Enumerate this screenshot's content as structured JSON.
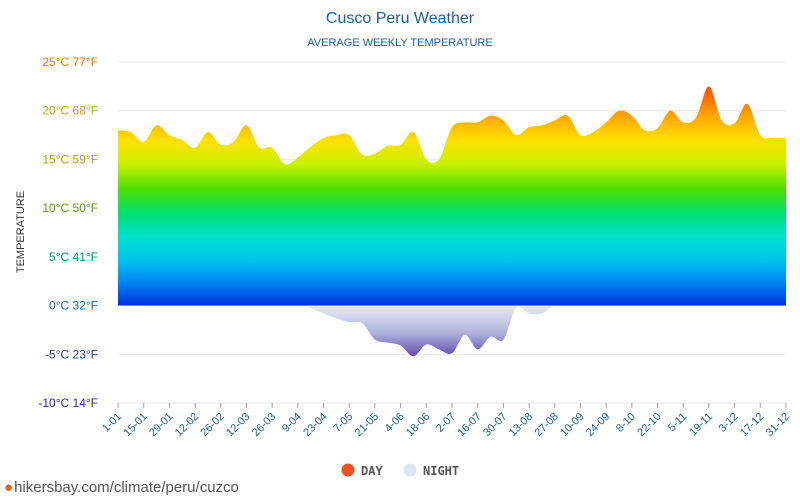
{
  "chart_data": {
    "type": "area",
    "title": "Cusco Peru Weather",
    "subtitle": "AVERAGE WEEKLY TEMPERATURE",
    "ylabel": "TEMPERATURE",
    "ylim": [
      -10,
      25
    ],
    "yticks": [
      {
        "value": 25,
        "label": "25°C 77°F",
        "color": "#e07b00"
      },
      {
        "value": 20,
        "label": "20°C 68°F",
        "color": "#d4a500"
      },
      {
        "value": 15,
        "label": "15°C 59°F",
        "color": "#a8a800"
      },
      {
        "value": 10,
        "label": "10°C 50°F",
        "color": "#5aa000"
      },
      {
        "value": 5,
        "label": "5°C 41°F",
        "color": "#008e8e"
      },
      {
        "value": 0,
        "label": "0°C 32°F",
        "color": "#1565c0"
      },
      {
        "value": -5,
        "label": "-5°C 23°F",
        "color": "#1a3fa8"
      },
      {
        "value": -10,
        "label": "-10°C 14°F",
        "color": "#2a1fc0"
      }
    ],
    "xticks": [
      "1-01",
      "15-01",
      "29-01",
      "12-02",
      "26-02",
      "12-03",
      "26-03",
      "9-04",
      "23-04",
      "7-05",
      "21-05",
      "4-06",
      "18-06",
      "2-07",
      "16-07",
      "30-07",
      "13-08",
      "27-08",
      "10-09",
      "24-09",
      "8-10",
      "22-10",
      "5-11",
      "19-11",
      "3-12",
      "17-12",
      "31-12"
    ],
    "series": [
      {
        "name": "DAY",
        "color": "#f4511e",
        "values": [
          18.0,
          17.8,
          16.8,
          18.5,
          17.5,
          17.0,
          16.2,
          17.8,
          16.5,
          16.8,
          18.5,
          16.2,
          16.2,
          14.5,
          15.2,
          16.3,
          17.2,
          17.5,
          17.5,
          15.5,
          15.6,
          16.4,
          16.5,
          17.8,
          15.0,
          15.0,
          18.3,
          18.8,
          18.8,
          19.5,
          19.0,
          17.5,
          18.3,
          18.5,
          19.0,
          19.5,
          17.5,
          17.8,
          18.8,
          20.0,
          19.5,
          18.0,
          18.2,
          20.0,
          18.8,
          19.3,
          22.5,
          19.0,
          18.7,
          20.7,
          17.5,
          17.2,
          17.2
        ]
      },
      {
        "name": "NIGHT",
        "color": "#e0e4f0",
        "values": [
          5.2,
          5.5,
          5.0,
          4.3,
          5.5,
          6.2,
          6.1,
          5.5,
          5.3,
          5.0,
          4.6,
          5.0,
          3.8,
          3.8,
          1.2,
          -0.2,
          -0.8,
          -1.3,
          -1.7,
          -1.8,
          -3.5,
          -3.8,
          -4.1,
          -5.2,
          -4.0,
          -4.5,
          -4.9,
          -3.0,
          -4.5,
          -3.2,
          -3.5,
          -0.2,
          -0.8,
          -0.8,
          0.2,
          1.5,
          3.0,
          3.2,
          1.6,
          2.4,
          3.2,
          4.0,
          3.9,
          3.6,
          3.9,
          4.0,
          3.7,
          4.4,
          5.0,
          4.4,
          5.3,
          5.4,
          5.0
        ]
      }
    ],
    "legend": "bottom-center",
    "grid": true
  },
  "source": {
    "text": "hikersbay.com/climate/peru/cuzco",
    "icon": "location-pin-icon"
  }
}
